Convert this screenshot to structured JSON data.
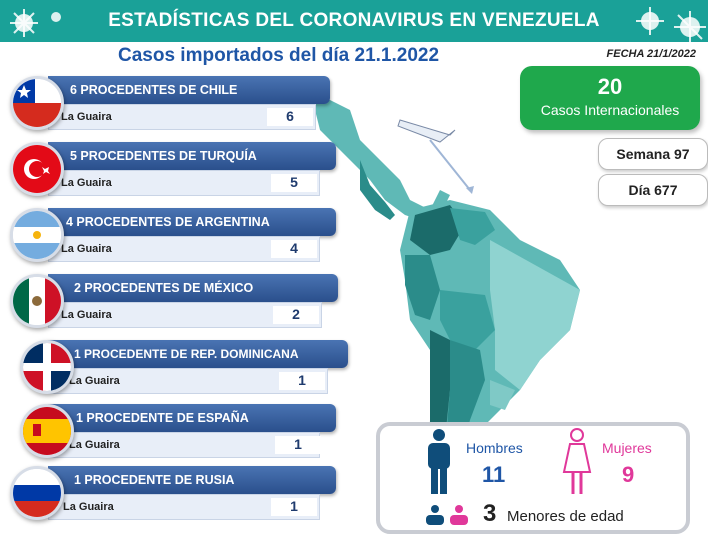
{
  "header": {
    "title": "ESTADÍSTICAS DEL CORONAVIRUS EN VENEZUELA"
  },
  "subtitle": "Casos importados del día 21.1.2022",
  "fecha": "FECHA 21/1/2022",
  "summary": {
    "count": "20",
    "count_label": "Casos Internacionales",
    "semana": "Semana 97",
    "dia": "Día 677"
  },
  "rows": [
    {
      "label": "6 PROCEDENTES DE CHILE",
      "city": "La Guaira",
      "count": "6",
      "flag": "chile-flag-icon"
    },
    {
      "label": "5 PROCEDENTES DE TURQUÍA",
      "city": "La Guaira",
      "count": "5",
      "flag": "turkey-flag-icon"
    },
    {
      "label": "4 PROCEDENTES DE ARGENTINA",
      "city": "La Guaira",
      "count": "4",
      "flag": "argentina-flag-icon"
    },
    {
      "label": "2 PROCEDENTES DE MÉXICO",
      "city": "La Guaira",
      "count": "2",
      "flag": "mexico-flag-icon"
    },
    {
      "label": "1 PROCEDENTE DE REP. DOMINICANA",
      "city": "La Guaira",
      "count": "1",
      "flag": "dominican-flag-icon"
    },
    {
      "label": "1 PROCEDENTE DE ESPAÑA",
      "city": "La Guaira",
      "count": "1",
      "flag": "spain-flag-icon"
    },
    {
      "label": "1 PROCEDENTE DE RUSIA",
      "city": "La Guaira",
      "count": "1",
      "flag": "russia-flag-icon"
    }
  ],
  "gender": {
    "men_label": "Hombres",
    "men_count": "11",
    "women_label": "Mujeres",
    "women_count": "9",
    "minors_count": "3",
    "minors_label": "Menores de edad"
  },
  "colors": {
    "banner": "#1aa198",
    "accent_blue": "#1f56a6",
    "green": "#1fa84c",
    "pink": "#e0389a",
    "navy": "#1f3b6e"
  }
}
